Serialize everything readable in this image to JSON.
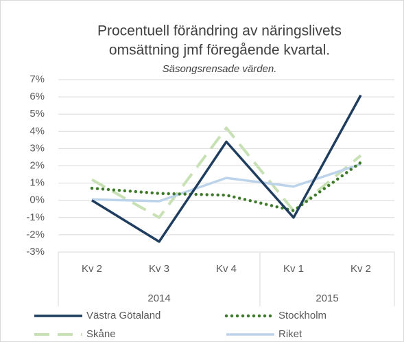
{
  "chart_data": {
    "type": "line",
    "title": [
      "Procentuell förändring av näringslivets",
      "omsättning jmf föregående kvartal."
    ],
    "subtitle": "Säsongsrensade värden.",
    "categories": [
      "Kv 2",
      "Kv 3",
      "Kv 4",
      "Kv 1",
      "Kv 2"
    ],
    "groups": [
      {
        "name": "2014",
        "count": 3
      },
      {
        "name": "2015",
        "count": 2
      }
    ],
    "series": [
      {
        "name": "Västra Götaland",
        "color": "#1f3d5e",
        "style": "solid",
        "values": [
          0.0,
          -2.4,
          3.4,
          -1.0,
          6.1
        ]
      },
      {
        "name": "Stockholm",
        "color": "#3e7a2a",
        "style": "dotted",
        "values": [
          0.7,
          0.4,
          0.3,
          -0.6,
          2.2
        ]
      },
      {
        "name": "Skåne",
        "color": "#c7e0b4",
        "style": "dashed",
        "values": [
          1.2,
          -1.0,
          4.2,
          -0.6,
          2.6
        ]
      },
      {
        "name": "Riket",
        "color": "#bcd3ea",
        "style": "solid",
        "values": [
          0.05,
          -0.05,
          1.3,
          0.8,
          2.1
        ]
      }
    ],
    "ylim": [
      -3,
      7
    ],
    "yticks": [
      {
        "value": -3,
        "label": "-3%"
      },
      {
        "value": -2,
        "label": "-2%"
      },
      {
        "value": -1,
        "label": "-1%"
      },
      {
        "value": 0,
        "label": "0%"
      },
      {
        "value": 1,
        "label": "1%"
      },
      {
        "value": 2,
        "label": "2%"
      },
      {
        "value": 3,
        "label": "3%"
      },
      {
        "value": 4,
        "label": "4%"
      },
      {
        "value": 5,
        "label": "5%"
      },
      {
        "value": 6,
        "label": "6%"
      },
      {
        "value": 7,
        "label": "7%"
      }
    ],
    "grid": true
  }
}
